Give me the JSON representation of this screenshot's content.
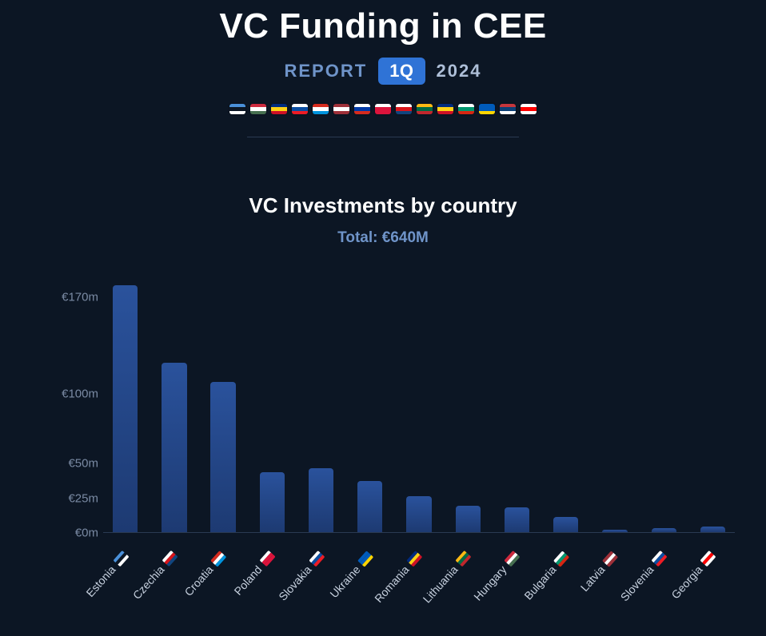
{
  "header": {
    "title": "VC Funding in CEE",
    "report_label": "REPORT",
    "quarter": "1Q",
    "year": "2024",
    "report_color": "#6f94c9",
    "year_color": "#aebfd8",
    "badge_bg": "#2f73d6",
    "divider_color": "#2a3a52",
    "flags": [
      [
        "#4a90d9",
        "#0c1624",
        "#ffffff"
      ],
      [
        "#cd2a3e",
        "#ffffff",
        "#477050"
      ],
      [
        "#002b7f",
        "#fcd116",
        "#ce1126"
      ],
      [
        "#ffffff",
        "#0b4ea2",
        "#ee1c25"
      ],
      [
        "#d52b1e",
        "#ffffff",
        "#0093dd"
      ],
      [
        "#9e3039",
        "#ffffff",
        "#9e3039"
      ],
      [
        "#ffffff",
        "#0039a6",
        "#d52b1e"
      ],
      [
        "#ffffff",
        "#dc143c",
        "#dc143c"
      ],
      [
        "#ffffff",
        "#d7141a",
        "#11457e"
      ],
      [
        "#fdb913",
        "#006a44",
        "#c1272d"
      ],
      [
        "#002b7f",
        "#fcd116",
        "#ce1126"
      ],
      [
        "#ffffff",
        "#00966e",
        "#d62612"
      ],
      [
        "#005bbb",
        "#005bbb",
        "#ffd500"
      ],
      [
        "#c6363c",
        "#0c4076",
        "#ffffff"
      ],
      [
        "#ffffff",
        "#ff0000",
        "#ffffff"
      ]
    ]
  },
  "chart": {
    "type": "bar",
    "title": "VC Investments by country",
    "title_fontsize": 26,
    "total_label": "Total: €640M",
    "total_color": "#6f94c9",
    "background_color": "#0c1624",
    "bar_color": "#2a529c",
    "axis_label_color": "#7a8aa3",
    "x_label_color": "#c8d2e0",
    "baseline_color": "#2a3a52",
    "ylim": [
      0,
      190
    ],
    "y_ticks": [
      {
        "value": 0,
        "label": "€0m"
      },
      {
        "value": 25,
        "label": "€25m"
      },
      {
        "value": 50,
        "label": "€50m"
      },
      {
        "value": 100,
        "label": "€100m"
      },
      {
        "value": 170,
        "label": "€170m"
      }
    ],
    "bar_width_ratio": 0.8,
    "x_rotation_deg": -48,
    "series": [
      {
        "country": "Estonia",
        "value": 178,
        "flag": [
          "#4a90d9",
          "#0c1624",
          "#ffffff"
        ]
      },
      {
        "country": "Czechia",
        "value": 122,
        "flag": [
          "#ffffff",
          "#d7141a",
          "#11457e"
        ]
      },
      {
        "country": "Croatia",
        "value": 108,
        "flag": [
          "#d52b1e",
          "#ffffff",
          "#0093dd"
        ]
      },
      {
        "country": "Poland",
        "value": 43,
        "flag": [
          "#ffffff",
          "#dc143c",
          "#dc143c"
        ]
      },
      {
        "country": "Slovakia",
        "value": 46,
        "flag": [
          "#ffffff",
          "#0b4ea2",
          "#ee1c25"
        ]
      },
      {
        "country": "Ukraine",
        "value": 37,
        "flag": [
          "#005bbb",
          "#005bbb",
          "#ffd500"
        ]
      },
      {
        "country": "Romania",
        "value": 26,
        "flag": [
          "#002b7f",
          "#fcd116",
          "#ce1126"
        ]
      },
      {
        "country": "Lithuania",
        "value": 19,
        "flag": [
          "#fdb913",
          "#006a44",
          "#c1272d"
        ]
      },
      {
        "country": "Hungary",
        "value": 18,
        "flag": [
          "#cd2a3e",
          "#ffffff",
          "#477050"
        ]
      },
      {
        "country": "Bulgaria",
        "value": 11,
        "flag": [
          "#ffffff",
          "#00966e",
          "#d62612"
        ]
      },
      {
        "country": "Latvia",
        "value": 2,
        "flag": [
          "#9e3039",
          "#ffffff",
          "#9e3039"
        ]
      },
      {
        "country": "Slovenia",
        "value": 3,
        "flag": [
          "#ffffff",
          "#0b4ea2",
          "#ee1c25"
        ]
      },
      {
        "country": "Georgia",
        "value": 4,
        "flag": [
          "#ffffff",
          "#ff0000",
          "#ffffff"
        ]
      }
    ]
  }
}
